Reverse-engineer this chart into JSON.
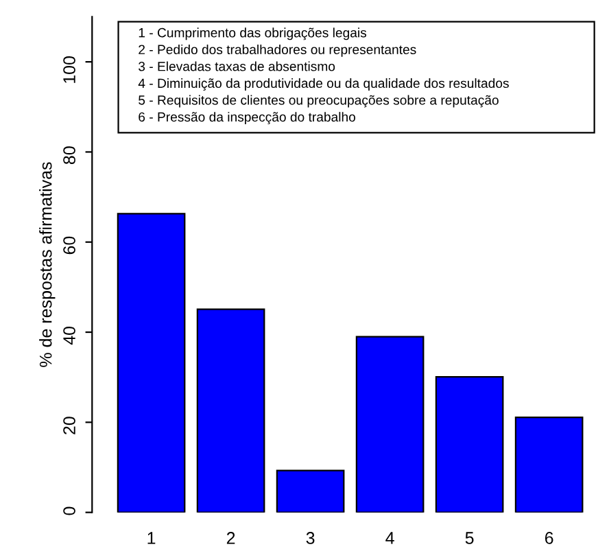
{
  "chart_data": {
    "type": "bar",
    "ylabel": "% de respostas afirmativas",
    "categories": [
      "1",
      "2",
      "3",
      "4",
      "5",
      "6"
    ],
    "values": [
      66.3,
      45.1,
      9.3,
      39.0,
      30.1,
      21.1
    ],
    "color": "#0000ff",
    "ylim": [
      0,
      110
    ],
    "yticks": [
      0,
      20,
      40,
      60,
      80,
      100
    ],
    "grid": false,
    "annotations": [
      "1 - Cumprimento das obrigações legais",
      "2 - Pedido dos trabalhadores ou representantes",
      "3 - Elevadas taxas de absentismo",
      "4 - Diminuição da produtividade ou da qualidade dos resultados",
      "5 - Requisitos de clientes ou preocupações sobre a reputação",
      "6 - Pressão da inspecção do trabalho"
    ]
  }
}
